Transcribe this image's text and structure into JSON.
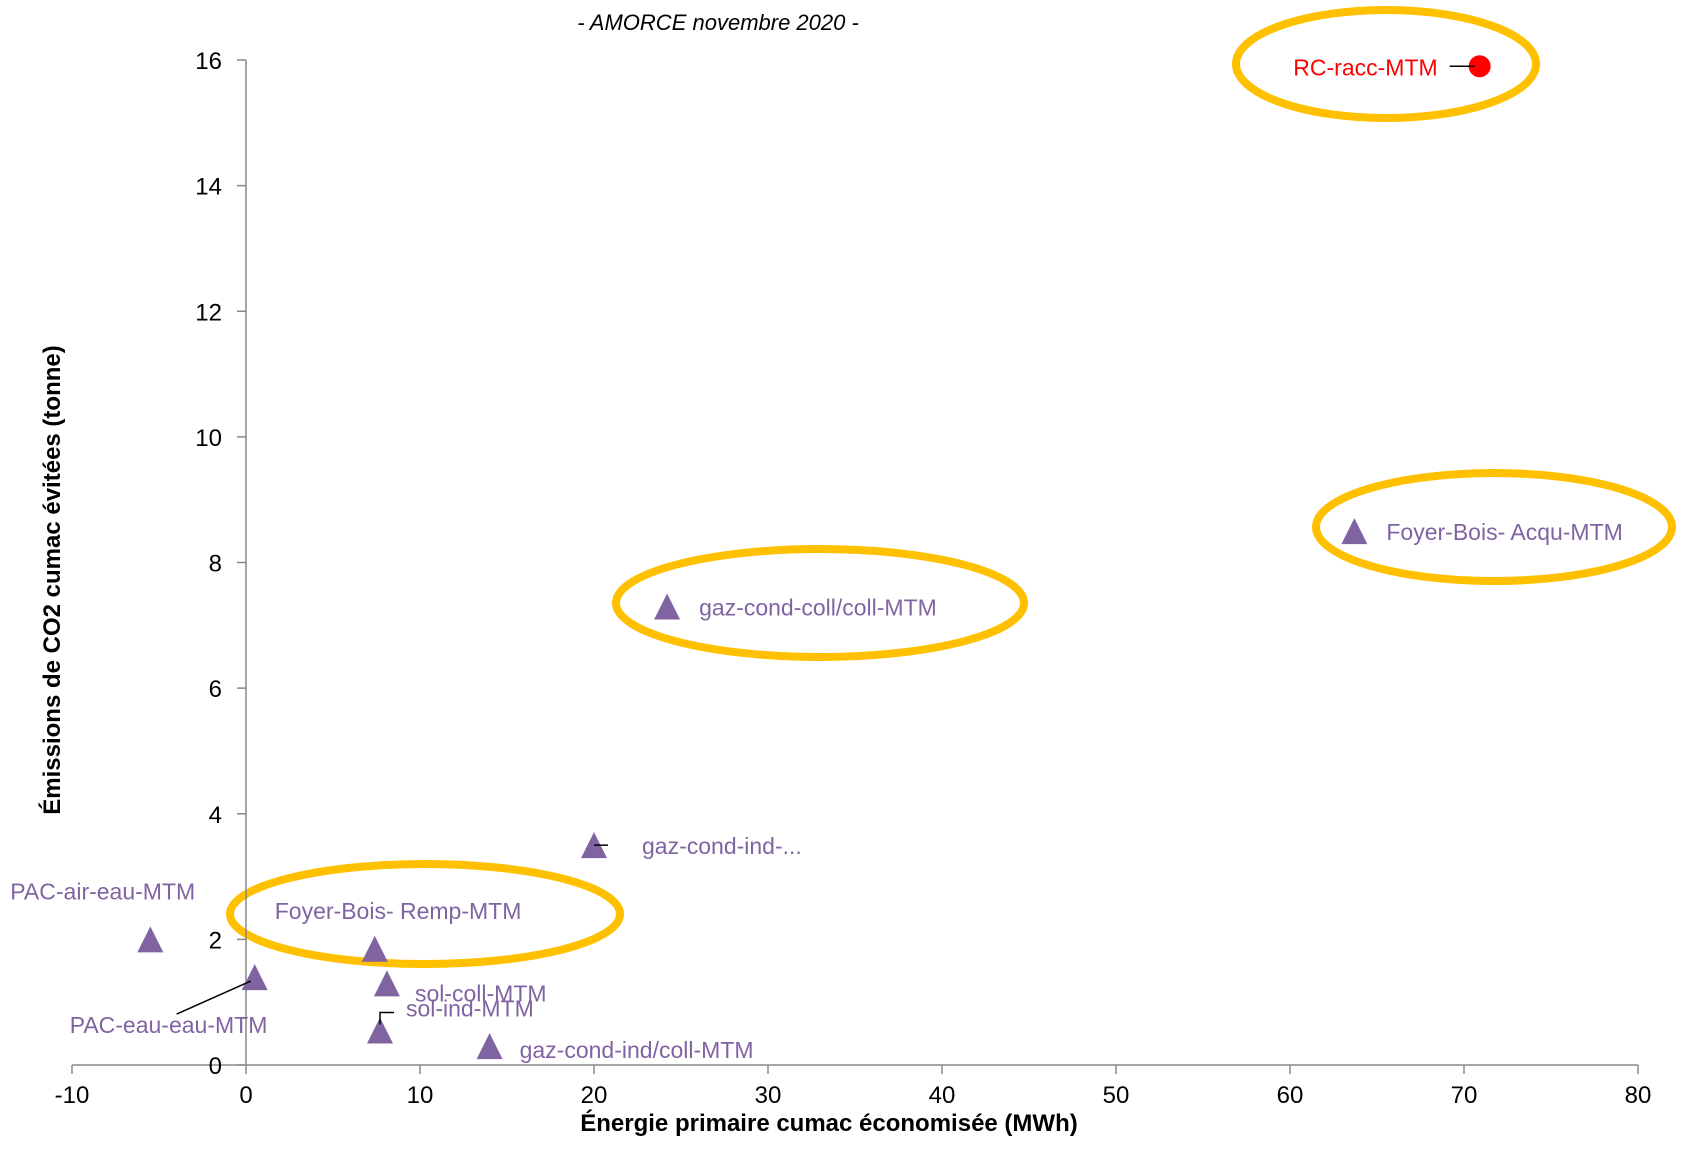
{
  "chart_data": {
    "type": "scatter",
    "title": "",
    "subtitle": "- AMORCE novembre 2020 -",
    "xlabel": "Énergie primaire cumac économisée (MWh)",
    "ylabel": "Émissions de CO2 cumac évitées (tonne)",
    "xlim": [
      -10,
      80
    ],
    "ylim": [
      0,
      16
    ],
    "x_ticks": [
      "-10",
      "0",
      "10",
      "20",
      "30",
      "40",
      "50",
      "60",
      "70",
      "80"
    ],
    "y_ticks": [
      "0",
      "2",
      "4",
      "6",
      "8",
      "10",
      "12",
      "14",
      "16"
    ],
    "grid": false,
    "legend": "none",
    "colors": {
      "triangle": "#8064a2",
      "highlight_point": "#ff0000",
      "highlight_label": "#ff0000",
      "ellipse": "#ffc000"
    },
    "points": [
      {
        "label": "RC-racc-MTM",
        "x": 70.9,
        "y": 15.9,
        "marker": "circle",
        "highlighted": true
      },
      {
        "label": "Foyer-Bois- Acqu-MTM",
        "x": 63.7,
        "y": 8.5,
        "marker": "triangle",
        "highlighted": true
      },
      {
        "label": "gaz-cond-coll/coll-MTM",
        "x": 24.2,
        "y": 7.3,
        "marker": "triangle",
        "highlighted": true
      },
      {
        "label": "gaz-cond-ind-...",
        "x": 20.0,
        "y": 3.5,
        "marker": "triangle",
        "highlighted": false
      },
      {
        "label": "Foyer-Bois- Remp-MTM",
        "x": 7.4,
        "y": 1.85,
        "marker": "triangle",
        "highlighted": true
      },
      {
        "label": "PAC-air-eau-MTM",
        "x": -5.5,
        "y": 2.0,
        "marker": "triangle",
        "highlighted": false
      },
      {
        "label": "PAC-eau-eau-MTM",
        "x": 0.5,
        "y": 1.4,
        "marker": "triangle",
        "highlighted": false
      },
      {
        "label": "sol-coll-MTM",
        "x": 8.1,
        "y": 1.3,
        "marker": "triangle",
        "highlighted": false
      },
      {
        "label": "sol-ind-MTM",
        "x": 7.7,
        "y": 0.55,
        "marker": "triangle",
        "highlighted": false
      },
      {
        "label": "gaz-cond-ind/coll-MTM",
        "x": 14.0,
        "y": 0.3,
        "marker": "triangle",
        "highlighted": false
      }
    ]
  }
}
